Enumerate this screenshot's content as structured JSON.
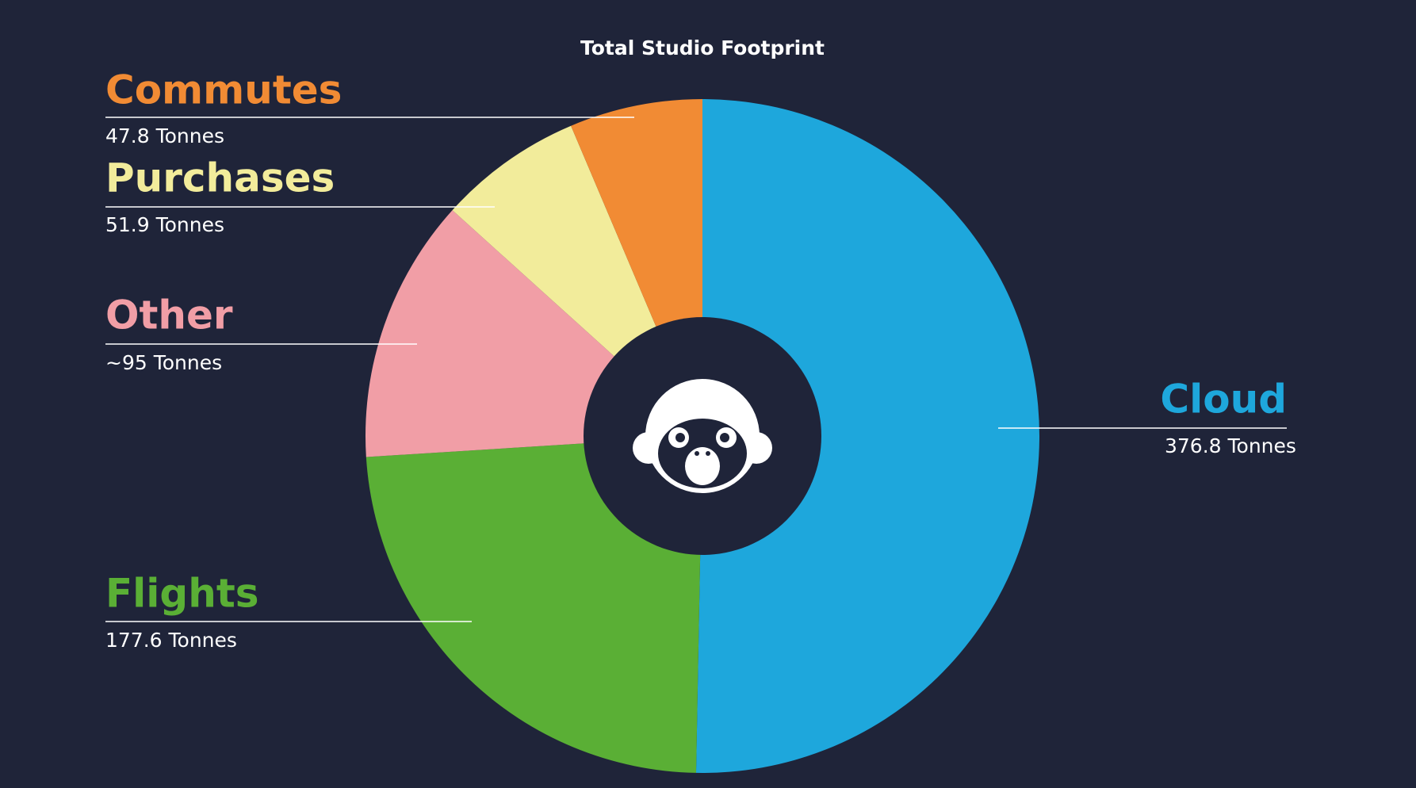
{
  "chart_data": {
    "type": "donut",
    "title": "Total Studio Footprint",
    "categories": [
      "Cloud",
      "Flights",
      "Other",
      "Purchases",
      "Commutes"
    ],
    "values": [
      376.8,
      177.6,
      95,
      51.9,
      47.8
    ],
    "value_labels": [
      "376.8 Tonnes",
      "177.6 Tonnes",
      "~95 Tonnes",
      "51.9 Tonnes",
      "47.8 Tonnes"
    ],
    "colors": [
      "#1ea7dc",
      "#5aaf35",
      "#f19ea6",
      "#f2ec9b",
      "#f18b34"
    ]
  }
}
